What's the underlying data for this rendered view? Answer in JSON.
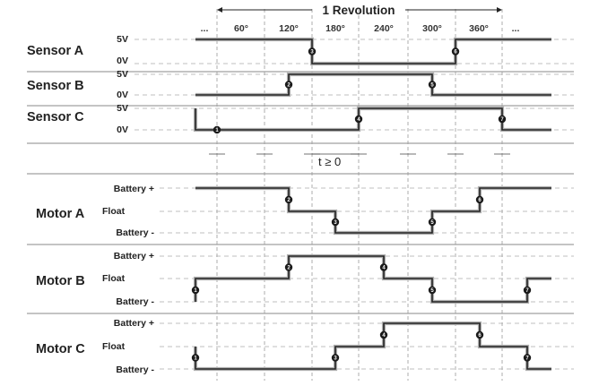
{
  "header": {
    "revolution_label": "1 Revolution",
    "ellipsis_left": "...",
    "ellipsis_right": "...",
    "angles": [
      "60°",
      "120°",
      "180°",
      "240°",
      "300°",
      "360°"
    ]
  },
  "sensors": [
    {
      "name": "Sensor A",
      "high_label": "5V",
      "low_label": "0V",
      "levels": [
        1,
        1,
        1,
        1,
        1,
        1,
        0,
        0,
        0,
        0,
        0,
        0,
        1,
        1,
        1,
        1
      ],
      "markers": [
        {
          "col": 6,
          "label": "3"
        },
        {
          "col": 12,
          "label": "6"
        }
      ]
    },
    {
      "name": "Sensor B",
      "high_label": "5V",
      "low_label": "0V",
      "levels": [
        0,
        0,
        0,
        0,
        0,
        1,
        1,
        1,
        1,
        1,
        1,
        0,
        0,
        0,
        0,
        0
      ],
      "markers": [
        {
          "col": 5,
          "label": "2"
        },
        {
          "col": 11,
          "label": "5"
        }
      ]
    },
    {
      "name": "Sensor C",
      "high_label": "5V",
      "low_label": "0V",
      "levels": [
        1,
        0,
        0,
        0,
        0,
        0,
        0,
        0,
        1,
        1,
        1,
        1,
        1,
        1,
        0,
        0
      ],
      "markers": [
        {
          "col": 2,
          "label": "1"
        },
        {
          "col": 8,
          "label": "4"
        },
        {
          "col": 14,
          "label": "7"
        }
      ]
    }
  ],
  "deadtime_label": "t ≥ 0",
  "motors": [
    {
      "name": "Motor A",
      "top_label": "Battery +",
      "mid_label": "Float",
      "bottom_label": "Battery -",
      "levels": [
        2,
        2,
        2,
        2,
        2,
        1,
        1,
        0,
        0,
        0,
        0,
        1,
        1,
        2,
        2,
        2
      ],
      "markers": [
        {
          "col": 5,
          "label": "2"
        },
        {
          "col": 7,
          "label": "3"
        },
        {
          "col": 11,
          "label": "5"
        },
        {
          "col": 13,
          "label": "6"
        }
      ]
    },
    {
      "name": "Motor B",
      "top_label": "Battery +",
      "mid_label": "Float",
      "bottom_label": "Battery -",
      "levels": [
        0,
        1,
        1,
        1,
        1,
        2,
        2,
        2,
        2,
        1,
        1,
        0,
        0,
        0,
        0,
        1
      ],
      "markers": [
        {
          "col": 1,
          "label": "1"
        },
        {
          "col": 5,
          "label": "2"
        },
        {
          "col": 9,
          "label": "4"
        },
        {
          "col": 11,
          "label": "5"
        },
        {
          "col": 15,
          "label": "7"
        }
      ]
    },
    {
      "name": "Motor C",
      "top_label": "Battery +",
      "mid_label": "Float",
      "bottom_label": "Battery -",
      "levels": [
        1,
        0,
        0,
        0,
        0,
        0,
        0,
        1,
        1,
        2,
        2,
        2,
        2,
        1,
        1,
        0
      ],
      "markers": [
        {
          "col": 1,
          "label": "1"
        },
        {
          "col": 7,
          "label": "3"
        },
        {
          "col": 9,
          "label": "4"
        },
        {
          "col": 13,
          "label": "6"
        },
        {
          "col": 15,
          "label": "7"
        }
      ]
    }
  ]
}
